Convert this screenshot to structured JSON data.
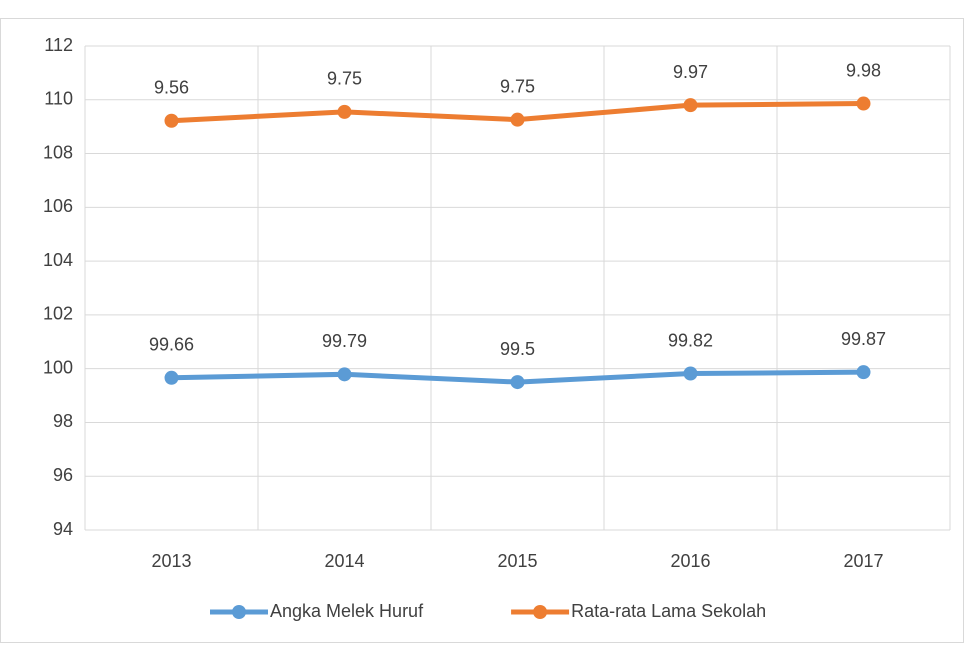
{
  "chart_data": {
    "type": "line",
    "categories": [
      "2013",
      "2014",
      "2015",
      "2016",
      "2017"
    ],
    "series": [
      {
        "name": "Angka Melek Huruf",
        "color": "#5b9bd5",
        "values": [
          99.66,
          99.79,
          99.5,
          99.82,
          99.87
        ]
      },
      {
        "name": "Rata-rata Lama Sekolah",
        "color": "#ed7d31",
        "values": [
          109.22,
          109.55,
          109.26,
          109.8,
          109.86
        ],
        "value_labels": [
          "9.56",
          "9.75",
          "9.75",
          "9.97",
          "9.98"
        ]
      }
    ],
    "ylim": [
      94,
      112
    ],
    "yticks": [
      94,
      96,
      98,
      100,
      102,
      104,
      106,
      108,
      110,
      112
    ],
    "grid": true,
    "legend": "bottom"
  }
}
